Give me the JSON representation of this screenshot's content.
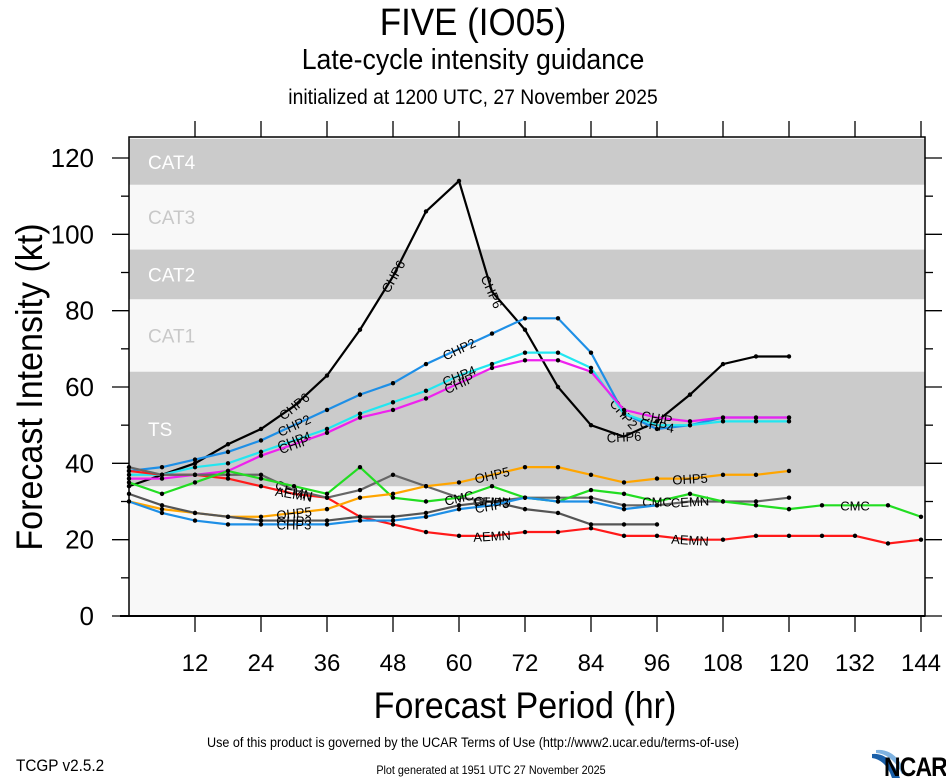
{
  "header": {
    "title": "FIVE (IO05)",
    "subtitle": "Late-cycle intensity guidance",
    "init": "initialized at 1200 UTC, 27 November 2025"
  },
  "footer": {
    "terms": "Use of this product is governed by the UCAR Terms of Use (http://www2.ucar.edu/terms-of-use)",
    "version": "TCGP v2.5.2",
    "generated": "Plot generated at 1951 UTC   27 November 2025",
    "logo": "NCAR"
  },
  "chart_data": {
    "type": "line",
    "title": "FIVE (IO05)",
    "subtitle": "Late-cycle intensity guidance",
    "xlabel": "Forecast Period (hr)",
    "ylabel": "Forecast Intensity (kt)",
    "xlim": [
      0,
      144
    ],
    "ylim": [
      0,
      120
    ],
    "xticks": [
      12,
      24,
      36,
      48,
      60,
      72,
      84,
      96,
      108,
      120,
      132,
      144
    ],
    "yticks": [
      0,
      20,
      40,
      60,
      80,
      100,
      120
    ],
    "x_step_hr": 6,
    "bands": [
      {
        "label": "TS",
        "from": 34,
        "to": 64,
        "shade": "dark"
      },
      {
        "label": "CAT1",
        "from": 64,
        "to": 83,
        "shade": "light"
      },
      {
        "label": "CAT2",
        "from": 83,
        "to": 96,
        "shade": "dark"
      },
      {
        "label": "CAT3",
        "from": 96,
        "to": 113,
        "shade": "light"
      },
      {
        "label": "CAT4",
        "from": 113,
        "to": 125,
        "shade": "dark"
      }
    ],
    "series": [
      {
        "name": "CHP6",
        "color": "#000000",
        "values": [
          34,
          37,
          40,
          45,
          49,
          55,
          63,
          75,
          89,
          106,
          114,
          85,
          75,
          60,
          50,
          47,
          51,
          58,
          66,
          68,
          68
        ],
        "label_at": [
          5,
          8,
          11,
          15
        ]
      },
      {
        "name": "CHP2",
        "color": "#1e8fe6",
        "values": [
          38,
          39,
          41,
          43,
          46,
          50,
          54,
          58,
          61,
          66,
          70,
          74,
          78,
          78,
          69,
          53,
          49,
          50,
          52,
          52,
          52
        ],
        "label_at": [
          5,
          10,
          15
        ]
      },
      {
        "name": "CHP4",
        "color": "#22e6f0",
        "values": [
          37,
          37,
          39,
          40,
          43,
          46,
          49,
          53,
          56,
          59,
          63,
          66,
          69,
          69,
          65,
          53,
          50,
          50,
          51,
          51,
          51
        ],
        "label_at": [
          5,
          10,
          16
        ]
      },
      {
        "name": "CHIP",
        "color": "#ee22ee",
        "values": [
          36,
          36,
          37,
          38,
          42,
          45,
          48,
          52,
          54,
          57,
          61,
          65,
          67,
          67,
          64,
          54,
          52,
          51,
          52,
          52,
          52
        ],
        "label_at": [
          5,
          10,
          16
        ]
      },
      {
        "name": "AEMN",
        "color": "#ff1a1a",
        "values": [
          38,
          37,
          37,
          36,
          34,
          32,
          31,
          26,
          24,
          22,
          21,
          21,
          22,
          22,
          23,
          21,
          21,
          20,
          20,
          21,
          21,
          21,
          21,
          19,
          20
        ],
        "label_at": [
          5,
          11,
          17
        ]
      },
      {
        "name": "CEMN",
        "color": "#666666",
        "values": [
          39,
          37,
          37,
          37,
          37,
          33,
          31,
          33,
          37,
          34,
          31,
          30,
          31,
          31,
          31,
          29,
          29,
          30,
          30,
          30,
          31
        ],
        "label_at": [
          5,
          11,
          17
        ]
      },
      {
        "name": "CMC",
        "color": "#22dd22",
        "values": [
          35,
          32,
          35,
          38,
          36,
          34,
          32,
          39,
          31,
          30,
          31,
          34,
          31,
          30,
          33,
          32,
          30,
          32,
          30,
          29,
          28,
          29,
          29,
          29,
          26
        ],
        "label_at": [
          10,
          16,
          22
        ]
      },
      {
        "name": "OHP5",
        "color": "#ffa500",
        "values": [
          30,
          28,
          27,
          26,
          26,
          27,
          28,
          31,
          32,
          34,
          35,
          37,
          39,
          39,
          37,
          35,
          36,
          36,
          37,
          37,
          38
        ],
        "label_at": [
          5,
          11,
          17
        ]
      },
      {
        "name": "GHP3",
        "color": "#555555",
        "values": [
          32,
          29,
          27,
          26,
          25,
          25,
          25,
          26,
          26,
          27,
          29,
          30,
          28,
          27,
          24,
          24,
          24
        ],
        "label_at": [
          5,
          11
        ]
      },
      {
        "name": "CHP3",
        "color": "#1e8fe6",
        "values": [
          30,
          27,
          25,
          24,
          24,
          24,
          24,
          25,
          25,
          26,
          28,
          29,
          31,
          30,
          30,
          28,
          29
        ],
        "label_at": [
          5,
          11
        ]
      }
    ]
  }
}
